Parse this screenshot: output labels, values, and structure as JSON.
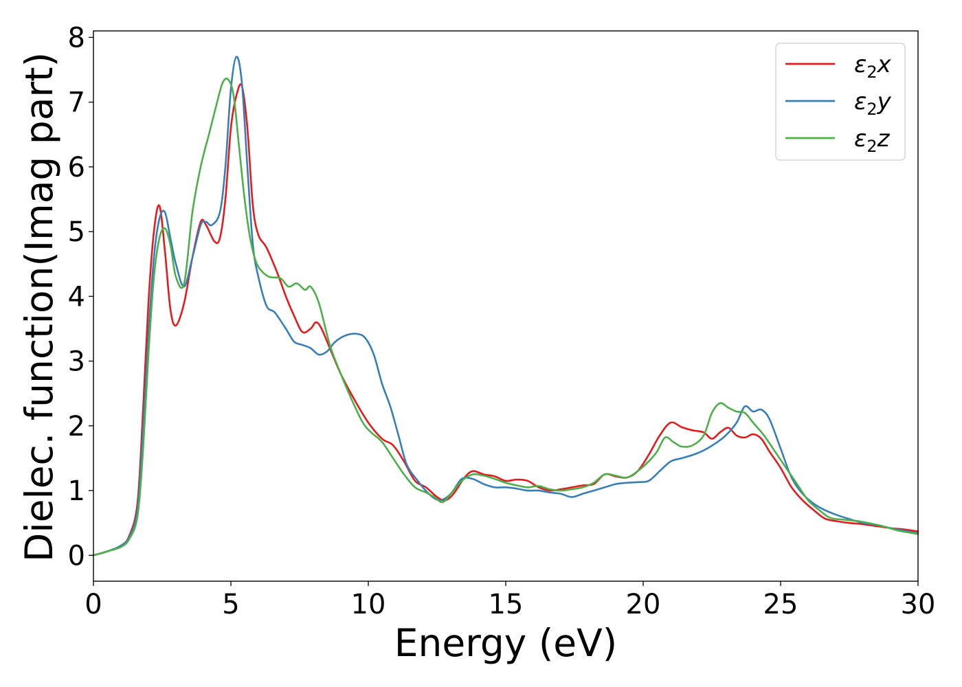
{
  "chart_data": {
    "type": "line",
    "xlabel": "Energy (eV)",
    "ylabel": "Dielec. function(Imag part)",
    "xlim": [
      0,
      30
    ],
    "ylim": [
      -0.4,
      8.1
    ],
    "x_ticks": [
      "0",
      "5",
      "10",
      "15",
      "20",
      "25",
      "30"
    ],
    "y_ticks": [
      "0",
      "1",
      "2",
      "3",
      "4",
      "5",
      "6",
      "7",
      "8"
    ],
    "grid": false,
    "legend_position": "top-right",
    "series": [
      {
        "name": "ε2x",
        "legend_symbol": "ε",
        "legend_sub": "2",
        "legend_var": "x",
        "color": "#e41a1c",
        "x": [
          0,
          0.5,
          1.0,
          1.3,
          1.6,
          1.8,
          2.0,
          2.2,
          2.4,
          2.6,
          2.8,
          3.0,
          3.3,
          3.6,
          3.9,
          4.1,
          4.4,
          4.6,
          4.8,
          5.0,
          5.2,
          5.4,
          5.6,
          5.8,
          6.0,
          6.3,
          6.7,
          7.0,
          7.3,
          7.6,
          7.9,
          8.1,
          8.3,
          8.6,
          9.0,
          9.5,
          10.0,
          10.5,
          10.9,
          11.3,
          11.7,
          12.1,
          12.5,
          12.8,
          13.1,
          13.5,
          13.8,
          14.2,
          14.6,
          15.0,
          15.4,
          15.8,
          16.2,
          16.6,
          17.0,
          17.4,
          17.8,
          18.2,
          18.6,
          19.0,
          19.4,
          19.8,
          20.2,
          20.6,
          21.0,
          21.4,
          21.8,
          22.2,
          22.5,
          22.8,
          23.1,
          23.4,
          23.7,
          24.0,
          24.3,
          24.6,
          25.0,
          25.4,
          25.8,
          26.2,
          26.6,
          27.0,
          27.5,
          28.0,
          28.5,
          29.0,
          29.5,
          30.0
        ],
        "y": [
          0,
          0.06,
          0.15,
          0.3,
          0.8,
          2.2,
          3.9,
          5.0,
          5.4,
          4.7,
          3.8,
          3.55,
          3.9,
          4.6,
          5.15,
          5.1,
          4.85,
          4.9,
          5.5,
          6.6,
          7.1,
          7.25,
          6.6,
          5.4,
          4.95,
          4.75,
          4.35,
          4.0,
          3.7,
          3.45,
          3.5,
          3.6,
          3.5,
          3.2,
          2.8,
          2.4,
          2.05,
          1.8,
          1.7,
          1.45,
          1.15,
          1.05,
          0.9,
          0.85,
          0.95,
          1.2,
          1.3,
          1.25,
          1.22,
          1.15,
          1.17,
          1.15,
          1.05,
          1.0,
          1.02,
          1.05,
          1.08,
          1.1,
          1.25,
          1.22,
          1.2,
          1.3,
          1.55,
          1.85,
          2.05,
          1.98,
          1.93,
          1.9,
          1.8,
          1.9,
          1.97,
          1.85,
          1.82,
          1.87,
          1.8,
          1.6,
          1.35,
          1.05,
          0.85,
          0.7,
          0.57,
          0.53,
          0.5,
          0.48,
          0.45,
          0.42,
          0.4,
          0.37
        ]
      },
      {
        "name": "ε2y",
        "legend_symbol": "ε",
        "legend_sub": "2",
        "legend_var": "y",
        "color": "#377eb8",
        "x": [
          0,
          0.5,
          1.0,
          1.3,
          1.6,
          1.8,
          2.0,
          2.2,
          2.4,
          2.6,
          2.8,
          3.0,
          3.3,
          3.6,
          3.9,
          4.1,
          4.3,
          4.6,
          4.8,
          5.0,
          5.2,
          5.4,
          5.6,
          5.8,
          6.0,
          6.3,
          6.6,
          7.0,
          7.3,
          7.6,
          7.9,
          8.2,
          8.5,
          8.8,
          9.2,
          9.6,
          9.9,
          10.2,
          10.5,
          10.8,
          11.1,
          11.4,
          11.8,
          12.2,
          12.6,
          13.0,
          13.4,
          13.8,
          14.2,
          14.6,
          15.0,
          15.4,
          15.8,
          16.2,
          16.6,
          17.0,
          17.4,
          17.8,
          18.2,
          18.6,
          19.0,
          19.4,
          19.8,
          20.2,
          20.6,
          21.0,
          21.4,
          21.8,
          22.2,
          22.6,
          23.0,
          23.4,
          23.7,
          24.0,
          24.3,
          24.6,
          25.0,
          25.4,
          25.8,
          26.2,
          26.6,
          27.0,
          27.5,
          28.0,
          28.5,
          29.0,
          29.5,
          30.0
        ],
        "y": [
          0,
          0.06,
          0.15,
          0.28,
          0.7,
          1.9,
          3.4,
          4.6,
          5.2,
          5.3,
          4.9,
          4.5,
          4.15,
          4.6,
          5.1,
          5.15,
          5.1,
          5.3,
          6.0,
          7.2,
          7.7,
          7.3,
          6.0,
          4.8,
          4.3,
          3.85,
          3.75,
          3.5,
          3.3,
          3.25,
          3.2,
          3.1,
          3.15,
          3.3,
          3.4,
          3.42,
          3.35,
          3.1,
          2.65,
          2.3,
          1.85,
          1.4,
          1.15,
          0.95,
          0.85,
          0.95,
          1.18,
          1.18,
          1.1,
          1.05,
          1.05,
          1.03,
          1.0,
          1.0,
          0.97,
          0.95,
          0.9,
          0.95,
          1.0,
          1.05,
          1.1,
          1.12,
          1.13,
          1.15,
          1.3,
          1.45,
          1.5,
          1.55,
          1.62,
          1.72,
          1.85,
          2.05,
          2.3,
          2.22,
          2.25,
          2.1,
          1.65,
          1.2,
          0.95,
          0.8,
          0.7,
          0.63,
          0.56,
          0.5,
          0.47,
          0.42,
          0.38,
          0.34
        ]
      },
      {
        "name": "ε2z",
        "legend_symbol": "ε",
        "legend_sub": "2",
        "legend_var": "z",
        "color": "#4daf4a",
        "x": [
          0,
          0.5,
          1.0,
          1.3,
          1.6,
          1.8,
          2.0,
          2.2,
          2.4,
          2.6,
          2.8,
          3.0,
          3.3,
          3.6,
          3.9,
          4.2,
          4.5,
          4.7,
          4.9,
          5.1,
          5.3,
          5.5,
          5.7,
          5.9,
          6.1,
          6.4,
          6.8,
          7.1,
          7.4,
          7.7,
          7.9,
          8.2,
          8.6,
          9.0,
          9.4,
          9.8,
          10.1,
          10.5,
          10.9,
          11.3,
          11.7,
          12.1,
          12.4,
          12.7,
          13.0,
          13.4,
          13.8,
          14.2,
          14.6,
          15.0,
          15.4,
          15.8,
          16.2,
          16.6,
          17.0,
          17.4,
          17.8,
          18.2,
          18.6,
          19.0,
          19.4,
          19.8,
          20.2,
          20.5,
          20.8,
          21.1,
          21.4,
          21.8,
          22.2,
          22.5,
          22.8,
          23.1,
          23.4,
          23.7,
          24.0,
          24.4,
          24.8,
          25.2,
          25.6,
          26.0,
          26.4,
          26.8,
          27.3,
          27.8,
          28.3,
          28.8,
          29.3,
          30.0
        ],
        "y": [
          0,
          0.06,
          0.13,
          0.25,
          0.6,
          1.6,
          3.1,
          4.3,
          4.9,
          5.05,
          4.8,
          4.3,
          4.2,
          5.3,
          6.0,
          6.5,
          7.0,
          7.3,
          7.35,
          7.1,
          6.3,
          5.5,
          4.9,
          4.55,
          4.4,
          4.3,
          4.28,
          4.15,
          4.2,
          4.1,
          4.15,
          3.9,
          3.25,
          2.8,
          2.4,
          2.05,
          1.9,
          1.75,
          1.5,
          1.25,
          1.05,
          0.97,
          0.9,
          0.82,
          0.95,
          1.15,
          1.25,
          1.23,
          1.18,
          1.12,
          1.08,
          1.05,
          1.07,
          1.02,
          1.0,
          1.02,
          1.05,
          1.12,
          1.25,
          1.23,
          1.2,
          1.3,
          1.45,
          1.6,
          1.82,
          1.75,
          1.68,
          1.7,
          1.85,
          2.2,
          2.35,
          2.28,
          2.22,
          2.2,
          2.05,
          1.85,
          1.6,
          1.35,
          1.1,
          0.85,
          0.7,
          0.58,
          0.55,
          0.53,
          0.49,
          0.44,
          0.38,
          0.33
        ]
      }
    ]
  }
}
